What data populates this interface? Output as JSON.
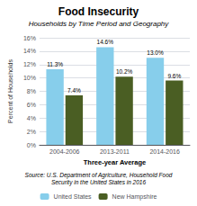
{
  "chart_data": {
    "type": "bar",
    "title": "Food Insecurity",
    "subtitle": "Households by Time Period and Geography",
    "categories": [
      "2004-2006",
      "2013-2011",
      "2014-2016"
    ],
    "series": [
      {
        "name": "United States",
        "color": "#87CEEB",
        "values": [
          11.3,
          14.6,
          13.0
        ],
        "value_labels": [
          "11.3%",
          "14.6%",
          "13.0%"
        ]
      },
      {
        "name": "New Hampshire",
        "color": "#4A5E23",
        "values": [
          7.4,
          10.2,
          9.6
        ],
        "value_labels": [
          "7.4%",
          "10.2%",
          "9.6%"
        ]
      }
    ],
    "xlabel": "Three-year Average",
    "ylabel": "Percent of Households",
    "ylim": [
      0,
      16
    ],
    "yticks": [
      {
        "value": 0,
        "label": "0%"
      },
      {
        "value": 2,
        "label": "2%"
      },
      {
        "value": 4,
        "label": "4%"
      },
      {
        "value": 6,
        "label": "6%"
      },
      {
        "value": 8,
        "label": "8%"
      },
      {
        "value": 10,
        "label": "10%"
      },
      {
        "value": 12,
        "label": "12%"
      },
      {
        "value": 14,
        "label": "14%"
      },
      {
        "value": 16,
        "label": "16%"
      }
    ],
    "source": "Source: U.S. Department of Agriculture, Household Food\nSecurity in the United States in 2016",
    "data_labels": true,
    "grid": true,
    "legend": "bottom"
  }
}
